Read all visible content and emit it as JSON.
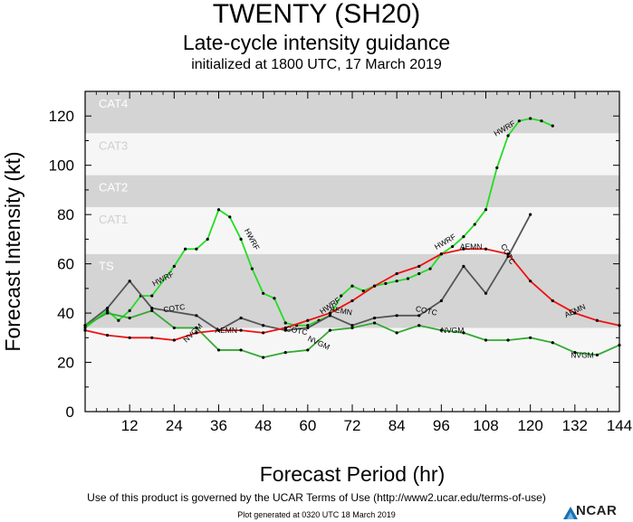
{
  "header": {
    "title": "TWENTY (SH20)",
    "subtitle": "Late-cycle intensity guidance",
    "init_line": "initialized at 1800 UTC, 17 March 2019"
  },
  "footer": {
    "terms": "Use of this product is governed by the UCAR Terms of Use (http://www2.ucar.edu/terms-of-use)",
    "generated": "Plot generated at 0320 UTC   18 March 2019",
    "logo_text": "NCAR"
  },
  "chart_data": {
    "type": "line",
    "title": "TWENTY (SH20)",
    "subtitle": "Late-cycle intensity guidance",
    "xlabel": "Forecast Period (hr)",
    "ylabel": "Forecast Intensity (kt)",
    "xlim": [
      0,
      144
    ],
    "ylim": [
      0,
      130
    ],
    "xticks": [
      12,
      24,
      36,
      48,
      60,
      72,
      84,
      96,
      108,
      120,
      132,
      144
    ],
    "yticks": [
      0,
      20,
      40,
      60,
      80,
      100,
      120
    ],
    "colors": {
      "gray_band": "#d4d4d4",
      "white_band": "#f6f6f6"
    },
    "bands": [
      {
        "label": "",
        "lo": 0,
        "hi": 34,
        "fill": "white"
      },
      {
        "label": "TS",
        "lo": 34,
        "hi": 64,
        "fill": "gray"
      },
      {
        "label": "CAT1",
        "lo": 64,
        "hi": 83,
        "fill": "white"
      },
      {
        "label": "CAT2",
        "lo": 83,
        "hi": 96,
        "fill": "gray"
      },
      {
        "label": "CAT3",
        "lo": 96,
        "hi": 113,
        "fill": "white"
      },
      {
        "label": "CAT4",
        "lo": 113,
        "hi": 130,
        "fill": "gray"
      }
    ],
    "series": [
      {
        "name": "HWRF",
        "color": "#22dd22",
        "x": [
          0,
          6,
          9,
          12,
          15,
          18,
          24,
          27,
          30,
          33,
          36,
          39,
          42,
          45,
          48,
          51,
          54,
          57,
          60,
          63,
          66,
          69,
          72,
          75,
          78,
          81,
          84,
          87,
          90,
          93,
          96,
          99,
          102,
          105,
          108,
          111,
          114,
          117,
          120,
          123,
          126
        ],
        "y": [
          34,
          41,
          37,
          41,
          47,
          47,
          59,
          66,
          66,
          70,
          82,
          79,
          70,
          58,
          48,
          46,
          36,
          35,
          35,
          37,
          39,
          47,
          51,
          49,
          51,
          52,
          53,
          54,
          56,
          58,
          64,
          67,
          71,
          76,
          82,
          99,
          112,
          118,
          119,
          118,
          116
        ],
        "labels": [
          {
            "text": "HWRF",
            "x": 21,
            "y": 54,
            "rot": -28
          },
          {
            "text": "HWRF",
            "x": 45,
            "y": 70,
            "rot": 62
          },
          {
            "text": "HWRF",
            "x": 66,
            "y": 43,
            "rot": -35
          },
          {
            "text": "HWRF",
            "x": 97,
            "y": 69,
            "rot": -30
          },
          {
            "text": "HWRF",
            "x": 113,
            "y": 115,
            "rot": -30
          }
        ]
      },
      {
        "name": "COTC",
        "color": "#555555",
        "x": [
          0,
          6,
          12,
          18,
          30,
          36,
          42,
          48,
          54,
          60,
          66,
          72,
          78,
          84,
          90,
          96,
          102,
          108,
          114,
          120
        ],
        "y": [
          35,
          42,
          53,
          42,
          39,
          33,
          38,
          35,
          33,
          34,
          39,
          35,
          38,
          39,
          39,
          45,
          59,
          48,
          63,
          80
        ],
        "labels": [
          {
            "text": "COTC",
            "x": 24,
            "y": 42,
            "rot": -8
          },
          {
            "text": "COTC",
            "x": 57,
            "y": 33,
            "rot": 10
          },
          {
            "text": "COTC",
            "x": 92,
            "y": 41,
            "rot": 12
          },
          {
            "text": "COTC",
            "x": 114,
            "y": 64,
            "rot": 62
          }
        ]
      },
      {
        "name": "NVGM",
        "color": "#33aa33",
        "x": [
          0,
          6,
          12,
          18,
          24,
          30,
          36,
          42,
          48,
          54,
          60,
          66,
          72,
          78,
          84,
          90,
          96,
          102,
          108,
          114,
          120,
          126,
          132,
          138,
          144
        ],
        "y": [
          35,
          40,
          38,
          41,
          34,
          34,
          25,
          25,
          22,
          24,
          25,
          33,
          34,
          36,
          32,
          35,
          33,
          32,
          29,
          29,
          30,
          28,
          24,
          23,
          27
        ],
        "labels": [
          {
            "text": "NVGM",
            "x": 29,
            "y": 32,
            "rot": -45
          },
          {
            "text": "NVGM",
            "x": 63,
            "y": 28,
            "rot": 25
          },
          {
            "text": "NVGM",
            "x": 99,
            "y": 33,
            "rot": 0
          },
          {
            "text": "NVGM",
            "x": 134,
            "y": 23,
            "rot": 0
          }
        ]
      },
      {
        "name": "AEMN",
        "color": "#ee1111",
        "x": [
          0,
          6,
          12,
          18,
          24,
          30,
          36,
          42,
          48,
          54,
          60,
          66,
          72,
          78,
          84,
          90,
          96,
          102,
          108,
          114,
          120,
          126,
          132,
          138,
          144
        ],
        "y": [
          33,
          31,
          30,
          30,
          29,
          32,
          33,
          33,
          32,
          34,
          37,
          40,
          45,
          51,
          56,
          59,
          64,
          66,
          66,
          64,
          53,
          45,
          40,
          37,
          35
        ],
        "labels": [
          {
            "text": "AEMN",
            "x": 38,
            "y": 33,
            "rot": 0
          },
          {
            "text": "AEMN",
            "x": 69,
            "y": 41,
            "rot": 10
          },
          {
            "text": "AEMN",
            "x": 104,
            "y": 67,
            "rot": 0
          },
          {
            "text": "AEMN",
            "x": 132,
            "y": 41,
            "rot": -25
          }
        ]
      }
    ]
  }
}
